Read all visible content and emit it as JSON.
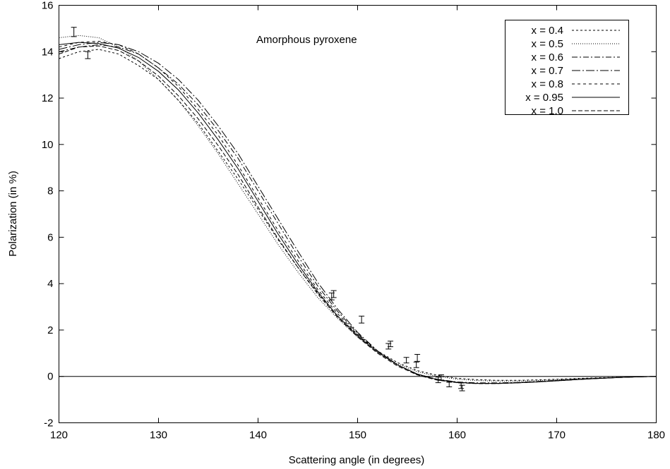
{
  "chart_data": {
    "type": "line",
    "title": "",
    "annotation": "Amorphous pyroxene",
    "xlabel": "Scattering  angle (in degrees)",
    "ylabel": "Polarization (in %)",
    "xlim": [
      120,
      180
    ],
    "ylim": [
      -2,
      16
    ],
    "xticks": [
      120,
      130,
      140,
      150,
      160,
      170,
      180
    ],
    "yticks": [
      -2,
      0,
      2,
      4,
      6,
      8,
      10,
      12,
      14,
      16
    ],
    "xtick_labels": [
      "120",
      "130",
      "140",
      "150",
      "160",
      "170",
      "180"
    ],
    "ytick_labels": [
      "-2",
      "0",
      "2",
      "4",
      "6",
      "8",
      "10",
      "12",
      "14",
      "16"
    ],
    "grid": false,
    "legend_position": "top-right",
    "zero_line": true,
    "series": [
      {
        "name": "x = 0.4",
        "style": "dashed-fine",
        "color": "#000000",
        "x": [
          120,
          122,
          124,
          126,
          128,
          130,
          132,
          134,
          136,
          138,
          140,
          142,
          144,
          146,
          148,
          150,
          152,
          154,
          156,
          158,
          160,
          162,
          164,
          166,
          168,
          170,
          172,
          174,
          176,
          178,
          180
        ],
        "y": [
          13.7,
          14.0,
          14.1,
          13.9,
          13.4,
          12.8,
          11.9,
          10.9,
          9.7,
          8.5,
          7.2,
          5.9,
          4.7,
          3.6,
          2.6,
          1.8,
          1.1,
          0.6,
          0.25,
          0.05,
          -0.08,
          -0.14,
          -0.17,
          -0.17,
          -0.15,
          -0.12,
          -0.09,
          -0.06,
          -0.04,
          -0.02,
          0.0
        ]
      },
      {
        "name": "x = 0.5",
        "style": "dotted",
        "color": "#000000",
        "x": [
          120,
          122,
          124,
          126,
          128,
          130,
          132,
          134,
          136,
          138,
          140,
          142,
          144,
          146,
          148,
          150,
          152,
          154,
          156,
          158,
          160,
          162,
          164,
          166,
          168,
          170,
          172,
          174,
          176,
          178,
          180
        ],
        "y": [
          14.6,
          14.7,
          14.6,
          14.2,
          13.6,
          12.8,
          11.9,
          10.8,
          9.6,
          8.3,
          7.0,
          5.7,
          4.5,
          3.4,
          2.5,
          1.7,
          1.05,
          0.55,
          0.2,
          0.0,
          -0.12,
          -0.18,
          -0.2,
          -0.2,
          -0.18,
          -0.14,
          -0.1,
          -0.07,
          -0.04,
          -0.02,
          0.0
        ]
      },
      {
        "name": "x = 0.6",
        "style": "dash-dot",
        "color": "#000000",
        "x": [
          120,
          122,
          124,
          126,
          128,
          130,
          132,
          134,
          136,
          138,
          140,
          142,
          144,
          146,
          148,
          150,
          152,
          154,
          156,
          158,
          160,
          162,
          164,
          166,
          168,
          170,
          172,
          174,
          176,
          178,
          180
        ],
        "y": [
          14.0,
          14.2,
          14.3,
          14.2,
          13.9,
          13.3,
          12.6,
          11.7,
          10.6,
          9.4,
          8.0,
          6.6,
          5.2,
          3.9,
          2.8,
          1.85,
          1.1,
          0.5,
          0.1,
          -0.12,
          -0.24,
          -0.28,
          -0.28,
          -0.26,
          -0.22,
          -0.17,
          -0.12,
          -0.08,
          -0.05,
          -0.02,
          0.0
        ]
      },
      {
        "name": "x = 0.7",
        "style": "dash-dot-long",
        "color": "#000000",
        "x": [
          120,
          122,
          124,
          126,
          128,
          130,
          132,
          134,
          136,
          138,
          140,
          142,
          144,
          146,
          148,
          150,
          152,
          154,
          156,
          158,
          160,
          162,
          164,
          166,
          168,
          170,
          172,
          174,
          176,
          178,
          180
        ],
        "y": [
          14.1,
          14.3,
          14.4,
          14.3,
          14.0,
          13.5,
          12.8,
          11.9,
          10.8,
          9.6,
          8.2,
          6.8,
          5.4,
          4.05,
          2.9,
          1.9,
          1.1,
          0.5,
          0.08,
          -0.14,
          -0.26,
          -0.3,
          -0.3,
          -0.27,
          -0.23,
          -0.18,
          -0.13,
          -0.09,
          -0.05,
          -0.02,
          0.0
        ]
      },
      {
        "name": "x = 0.8",
        "style": "dashed",
        "color": "#000000",
        "x": [
          120,
          122,
          124,
          126,
          128,
          130,
          132,
          134,
          136,
          138,
          140,
          142,
          144,
          146,
          148,
          150,
          152,
          154,
          156,
          158,
          160,
          162,
          164,
          166,
          168,
          170,
          172,
          174,
          176,
          178,
          180
        ],
        "y": [
          14.2,
          14.4,
          14.45,
          14.3,
          13.9,
          13.3,
          12.5,
          11.5,
          10.4,
          9.1,
          7.7,
          6.3,
          5.0,
          3.75,
          2.7,
          1.8,
          1.05,
          0.5,
          0.1,
          -0.13,
          -0.25,
          -0.3,
          -0.3,
          -0.27,
          -0.23,
          -0.18,
          -0.13,
          -0.09,
          -0.05,
          -0.02,
          0.0
        ]
      },
      {
        "name": "x = 0.95",
        "style": "solid",
        "color": "#000000",
        "x": [
          120,
          122,
          124,
          126,
          128,
          130,
          132,
          134,
          136,
          138,
          140,
          142,
          144,
          146,
          148,
          150,
          152,
          154,
          156,
          158,
          160,
          162,
          164,
          166,
          168,
          170,
          172,
          174,
          176,
          178,
          180
        ],
        "y": [
          14.3,
          14.4,
          14.35,
          14.15,
          13.75,
          13.15,
          12.35,
          11.35,
          10.2,
          8.95,
          7.55,
          6.15,
          4.85,
          3.65,
          2.6,
          1.75,
          1.05,
          0.5,
          0.1,
          -0.14,
          -0.26,
          -0.3,
          -0.3,
          -0.28,
          -0.24,
          -0.19,
          -0.14,
          -0.09,
          -0.05,
          -0.02,
          0.0
        ]
      },
      {
        "name": "x = 1.0",
        "style": "dashed-long",
        "color": "#000000",
        "x": [
          120,
          122,
          124,
          126,
          128,
          130,
          132,
          134,
          136,
          138,
          140,
          142,
          144,
          146,
          148,
          150,
          152,
          154,
          156,
          158,
          160,
          162,
          164,
          166,
          168,
          170,
          172,
          174,
          176,
          178,
          180
        ],
        "y": [
          13.9,
          14.2,
          14.25,
          14.05,
          13.6,
          12.95,
          12.1,
          11.1,
          9.95,
          8.7,
          7.3,
          5.95,
          4.7,
          3.55,
          2.55,
          1.7,
          1.0,
          0.45,
          0.06,
          -0.16,
          -0.27,
          -0.31,
          -0.31,
          -0.28,
          -0.24,
          -0.19,
          -0.14,
          -0.09,
          -0.05,
          -0.02,
          0.0
        ]
      }
    ],
    "observations": {
      "x": [
        121.5,
        122.9,
        147.4,
        147.6,
        150.4,
        153.1,
        153.3,
        154.9,
        155.9,
        156.0,
        158.1,
        158.4,
        159.2,
        160.4,
        160.5
      ],
      "y": [
        14.85,
        13.85,
        3.45,
        3.55,
        2.45,
        1.3,
        1.4,
        0.7,
        0.5,
        0.8,
        -0.15,
        -0.05,
        -0.35,
        -0.4,
        -0.5
      ],
      "err": [
        0.2,
        0.15,
        0.15,
        0.15,
        0.15,
        0.12,
        0.12,
        0.12,
        0.12,
        0.15,
        0.12,
        0.12,
        0.1,
        0.12,
        0.12
      ]
    }
  }
}
